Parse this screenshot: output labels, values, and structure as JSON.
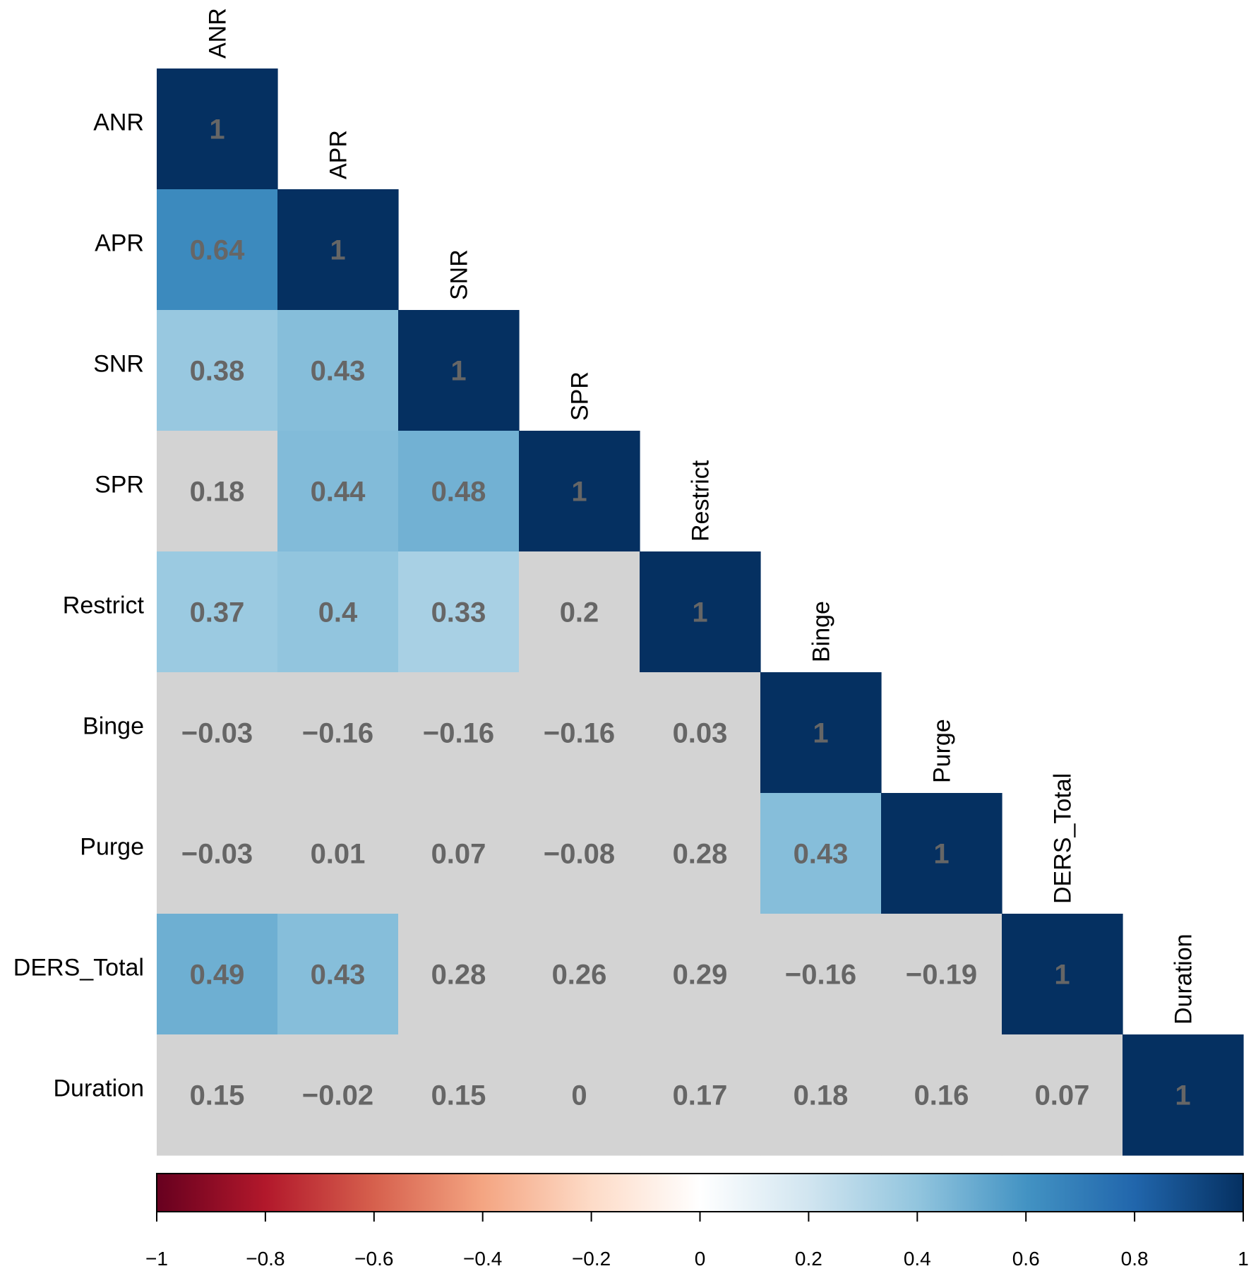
{
  "chart_data": {
    "type": "heatmap",
    "title": "",
    "variables": [
      "ANR",
      "APR",
      "SNR",
      "SPR",
      "Restrict",
      "Binge",
      "Purge",
      "DERS_Total",
      "Duration"
    ],
    "matrix_lower": [
      [
        "1"
      ],
      [
        "0.64",
        "1"
      ],
      [
        "0.38",
        "0.43",
        "1"
      ],
      [
        "0.18",
        "0.44",
        "0.48",
        "1"
      ],
      [
        "0.37",
        "0.4",
        "0.33",
        "0.2",
        "1"
      ],
      [
        "−0.03",
        "−0.16",
        "−0.16",
        "−0.16",
        "0.03",
        "1"
      ],
      [
        "−0.03",
        "0.01",
        "0.07",
        "−0.08",
        "0.28",
        "0.43",
        "1"
      ],
      [
        "0.49",
        "0.43",
        "0.28",
        "0.26",
        "0.29",
        "−0.16",
        "−0.19",
        "1"
      ],
      [
        "0.15",
        "−0.02",
        "0.15",
        "0",
        "0.17",
        "0.18",
        "0.16",
        "0.07",
        "1"
      ]
    ],
    "significant_lower": [
      [
        true
      ],
      [
        true,
        true
      ],
      [
        true,
        true,
        true
      ],
      [
        false,
        true,
        true,
        true
      ],
      [
        true,
        true,
        true,
        false,
        true
      ],
      [
        false,
        false,
        false,
        false,
        false,
        true
      ],
      [
        false,
        false,
        false,
        false,
        false,
        true,
        true
      ],
      [
        true,
        true,
        false,
        false,
        false,
        false,
        false,
        true
      ],
      [
        false,
        false,
        false,
        false,
        false,
        false,
        false,
        false,
        true
      ]
    ],
    "nonsignificant_color": "#d3d3d3",
    "colorbar": {
      "range": [
        -1,
        1
      ],
      "ticks": [
        "−1",
        "−0.8",
        "−0.6",
        "−0.4",
        "−0.2",
        "0",
        "0.2",
        "0.4",
        "0.6",
        "0.8",
        "1"
      ],
      "stops": [
        "#67001f",
        "#b2182b",
        "#d6604d",
        "#f4a582",
        "#fddbc7",
        "#ffffff",
        "#d1e5f0",
        "#92c5de",
        "#4393c3",
        "#2166ac",
        "#053061"
      ]
    }
  }
}
